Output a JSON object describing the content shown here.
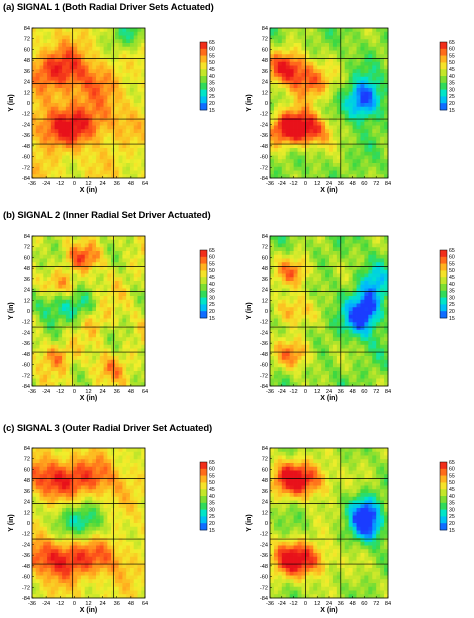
{
  "palette": {
    "colormap": [
      "#1a3cff",
      "#00b7ff",
      "#00e5c8",
      "#3fd83f",
      "#a6e22b",
      "#f2ee2b",
      "#ffb21f",
      "#ff5a1a",
      "#e8111a"
    ],
    "grid_line": "#000000",
    "background": "#ffffff"
  },
  "sections": [
    {
      "label": "(a) SIGNAL 1 (Both Radial Driver Sets Actuated)"
    },
    {
      "label": "(b) SIGNAL 2 (Inner Radial Set Driver Actuated)"
    },
    {
      "label": "(c) SIGNAL 3 (Outer Radial Driver Set Actuated)"
    }
  ],
  "chart_data": [
    {
      "type": "heatmap",
      "section": "(a) SIGNAL 1",
      "panel": "left",
      "xlabel": "X (in)",
      "ylabel": "Y (in)",
      "xlim": [
        -36,
        64
      ],
      "ylim": [
        -84,
        84
      ],
      "xticks": [
        "-36",
        "-24",
        "-12",
        "0",
        "12",
        "24",
        "36",
        "48",
        "64"
      ],
      "yticks": [
        "84",
        "72",
        "60",
        "48",
        "36",
        "24",
        "12",
        "0",
        "-12",
        "-24",
        "-36",
        "-48",
        "-60",
        "-72",
        "-84"
      ],
      "colorbar": {
        "ticks": [
          "65",
          "60",
          "55",
          "50",
          "45",
          "40",
          "35",
          "30",
          "25",
          "20",
          "15"
        ],
        "min": 15,
        "max": 65
      },
      "grid_x": [
        0,
        36
      ],
      "grid_y": [
        50,
        22,
        -18,
        -46
      ],
      "field": {
        "base": 47,
        "hotspots": [
          [
            -12,
            40,
            62
          ],
          [
            -12,
            -28,
            62
          ],
          [
            12,
            18,
            55
          ],
          [
            20,
            -20,
            56
          ]
        ],
        "sigma": [
          26,
          22
        ],
        "cold": [
          [
            50,
            78,
            30
          ]
        ],
        "texture": 0.3
      }
    },
    {
      "type": "heatmap",
      "section": "(a) SIGNAL 1",
      "panel": "right",
      "xlabel": "X (in)",
      "ylabel": "Y (in)",
      "xlim": [
        -36,
        84
      ],
      "ylim": [
        -84,
        84
      ],
      "xticks": [
        "-36",
        "-24",
        "-12",
        "0",
        "12",
        "24",
        "36",
        "48",
        "60",
        "72",
        "84"
      ],
      "yticks": [
        "84",
        "72",
        "60",
        "48",
        "36",
        "24",
        "12",
        "0",
        "-12",
        "-24",
        "-36",
        "-48",
        "-60",
        "-72",
        "-84"
      ],
      "colorbar": {
        "ticks": [
          "65",
          "60",
          "55",
          "50",
          "45",
          "40",
          "35",
          "30",
          "25",
          "20",
          "15"
        ],
        "min": 15,
        "max": 65
      },
      "grid_x": [
        0,
        36
      ],
      "grid_y": [
        50,
        22,
        -18,
        -46
      ],
      "field": {
        "base": 38,
        "hotspots": [
          [
            -18,
            40,
            64
          ],
          [
            -18,
            -28,
            64
          ],
          [
            6,
            22,
            56
          ],
          [
            6,
            -30,
            58
          ]
        ],
        "sigma": [
          22,
          20
        ],
        "cold": [
          [
            62,
            10,
            24
          ],
          [
            58,
            -2,
            22
          ]
        ],
        "texture": 0.35
      }
    },
    {
      "type": "heatmap",
      "section": "(b) SIGNAL 2",
      "panel": "left",
      "xlabel": "X (in)",
      "ylabel": "Y (in)",
      "xlim": [
        -36,
        64
      ],
      "ylim": [
        -84,
        84
      ],
      "xticks": [
        "-36",
        "-24",
        "-12",
        "0",
        "12",
        "24",
        "36",
        "48",
        "64"
      ],
      "yticks": [
        "84",
        "72",
        "60",
        "48",
        "36",
        "24",
        "12",
        "0",
        "-12",
        "-24",
        "-36",
        "-48",
        "-60",
        "-72",
        "-84"
      ],
      "colorbar": {
        "ticks": [
          "65",
          "60",
          "55",
          "50",
          "45",
          "40",
          "35",
          "30",
          "25",
          "20",
          "15"
        ],
        "min": 15,
        "max": 65
      },
      "grid_x": [
        0,
        36
      ],
      "grid_y": [
        50,
        22,
        -18,
        -46
      ],
      "field": {
        "base": 44,
        "hotspots": [
          [
            10,
            60,
            56
          ],
          [
            -10,
            28,
            54
          ],
          [
            20,
            -10,
            52
          ],
          [
            -14,
            -50,
            54
          ],
          [
            30,
            -64,
            52
          ]
        ],
        "sigma": [
          16,
          14
        ],
        "cold": [
          [
            -20,
            8,
            30
          ],
          [
            4,
            0,
            32
          ]
        ],
        "texture": 0.45
      }
    },
    {
      "type": "heatmap",
      "section": "(b) SIGNAL 2",
      "panel": "right",
      "xlabel": "X (in)",
      "ylabel": "Y (in)",
      "xlim": [
        -36,
        84
      ],
      "ylim": [
        -84,
        84
      ],
      "xticks": [
        "-36",
        "-24",
        "-12",
        "0",
        "12",
        "24",
        "36",
        "48",
        "60",
        "72",
        "84"
      ],
      "yticks": [
        "84",
        "72",
        "60",
        "48",
        "36",
        "24",
        "12",
        "0",
        "-12",
        "-24",
        "-36",
        "-48",
        "-60",
        "-72",
        "-84"
      ],
      "colorbar": {
        "ticks": [
          "65",
          "60",
          "55",
          "50",
          "45",
          "40",
          "35",
          "30",
          "25",
          "20",
          "15"
        ],
        "min": 15,
        "max": 65
      },
      "grid_x": [
        0,
        36
      ],
      "grid_y": [
        50,
        22,
        -18,
        -46
      ],
      "field": {
        "base": 38,
        "hotspots": [
          [
            -10,
            44,
            56
          ],
          [
            -18,
            0,
            54
          ],
          [
            -10,
            -48,
            56
          ]
        ],
        "sigma": [
          20,
          18
        ],
        "cold": [
          [
            64,
            4,
            18
          ],
          [
            54,
            -12,
            22
          ],
          [
            70,
            30,
            26
          ]
        ],
        "texture": 0.4
      }
    },
    {
      "type": "heatmap",
      "section": "(c) SIGNAL 3",
      "panel": "left",
      "xlabel": "X (in)",
      "ylabel": "Y (in)",
      "xlim": [
        -36,
        64
      ],
      "ylim": [
        -84,
        84
      ],
      "xticks": [
        "-36",
        "-24",
        "-12",
        "0",
        "12",
        "24",
        "36",
        "48",
        "64"
      ],
      "yticks": [
        "84",
        "72",
        "60",
        "48",
        "36",
        "24",
        "12",
        "0",
        "-12",
        "-24",
        "-36",
        "-48",
        "-60",
        "-72",
        "-84"
      ],
      "colorbar": {
        "ticks": [
          "65",
          "60",
          "55",
          "50",
          "45",
          "40",
          "35",
          "30",
          "25",
          "20",
          "15"
        ],
        "min": 15,
        "max": 65
      },
      "grid_x": [
        0,
        36
      ],
      "grid_y": [
        50,
        22,
        -18,
        -46
      ],
      "field": {
        "base": 46,
        "hotspots": [
          [
            -14,
            50,
            63
          ],
          [
            -14,
            -40,
            63
          ],
          [
            24,
            50,
            55
          ],
          [
            24,
            -40,
            56
          ]
        ],
        "sigma": [
          26,
          22
        ],
        "cold": [
          [
            -4,
            4,
            34
          ],
          [
            14,
            0,
            34
          ]
        ],
        "texture": 0.3
      }
    },
    {
      "type": "heatmap",
      "section": "(c) SIGNAL 3",
      "panel": "right",
      "xlabel": "X (in)",
      "ylabel": "Y (in)",
      "xlim": [
        -36,
        84
      ],
      "ylim": [
        -84,
        84
      ],
      "xticks": [
        "-36",
        "-24",
        "-12",
        "0",
        "12",
        "24",
        "36",
        "48",
        "60",
        "72",
        "84"
      ],
      "yticks": [
        "84",
        "72",
        "60",
        "48",
        "36",
        "24",
        "12",
        "0",
        "-12",
        "-24",
        "-36",
        "-48",
        "-60",
        "-72",
        "-84"
      ],
      "colorbar": {
        "ticks": [
          "65",
          "60",
          "55",
          "50",
          "45",
          "40",
          "35",
          "30",
          "25",
          "20",
          "15"
        ],
        "min": 15,
        "max": 65
      },
      "grid_x": [
        0,
        36
      ],
      "grid_y": [
        50,
        22,
        -18,
        -46
      ],
      "field": {
        "base": 40,
        "hotspots": [
          [
            -16,
            50,
            62
          ],
          [
            -16,
            -40,
            62
          ],
          [
            10,
            48,
            54
          ],
          [
            10,
            -42,
            54
          ]
        ],
        "sigma": [
          22,
          20
        ],
        "cold": [
          [
            60,
            14,
            22
          ],
          [
            64,
            -4,
            20
          ]
        ],
        "texture": 0.35
      }
    }
  ]
}
